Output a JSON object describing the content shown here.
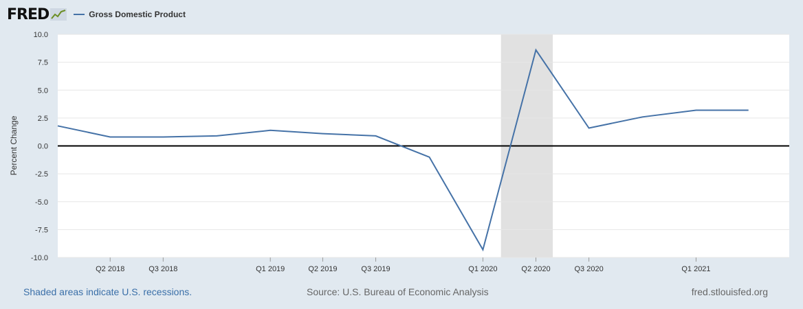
{
  "logo": {
    "text": "FRED",
    "icon": "fred-graph-icon"
  },
  "colors": {
    "series": "#4572a7",
    "recession": "#e1e1e1",
    "zero_line": "#000000",
    "grid": "#e6e6e6",
    "background": "#e1e9f0",
    "plot": "#ffffff"
  },
  "footer": {
    "left": "Shaded areas indicate U.S. recessions.",
    "source": "Source: U.S. Bureau of Economic Analysis",
    "site": "fred.stlouisfed.org"
  },
  "chart_data": {
    "type": "line",
    "title": "",
    "xlabel": "",
    "ylabel": "Percent Change",
    "ylim": [
      -10,
      10
    ],
    "y_ticks": [
      "10.0",
      "7.5",
      "5.0",
      "2.5",
      "0.0",
      "-2.5",
      "-5.0",
      "-7.5",
      "-10.0"
    ],
    "grid": true,
    "legend_position": "top-left",
    "x_ticks": [
      "Q2 2018",
      "Q3 2018",
      "Q1 2019",
      "Q2 2019",
      "Q3 2019",
      "Q1 2020",
      "Q2 2020",
      "Q3 2020",
      "Q1 2021"
    ],
    "recession": {
      "start": "2020-02-01",
      "end": "2020-04-30"
    },
    "series": [
      {
        "name": "Gross Domestic Product",
        "x": [
          "2018-01-01",
          "2018-04-01",
          "2018-07-01",
          "2018-10-01",
          "2019-01-01",
          "2019-04-01",
          "2019-07-01",
          "2019-10-01",
          "2020-01-01",
          "2020-04-01",
          "2020-07-01",
          "2020-10-01",
          "2021-01-01",
          "2021-04-01"
        ],
        "values": [
          1.8,
          0.8,
          0.8,
          0.9,
          1.4,
          1.1,
          0.9,
          -1.0,
          -9.3,
          8.6,
          1.6,
          2.6,
          3.2,
          3.2
        ]
      }
    ]
  }
}
